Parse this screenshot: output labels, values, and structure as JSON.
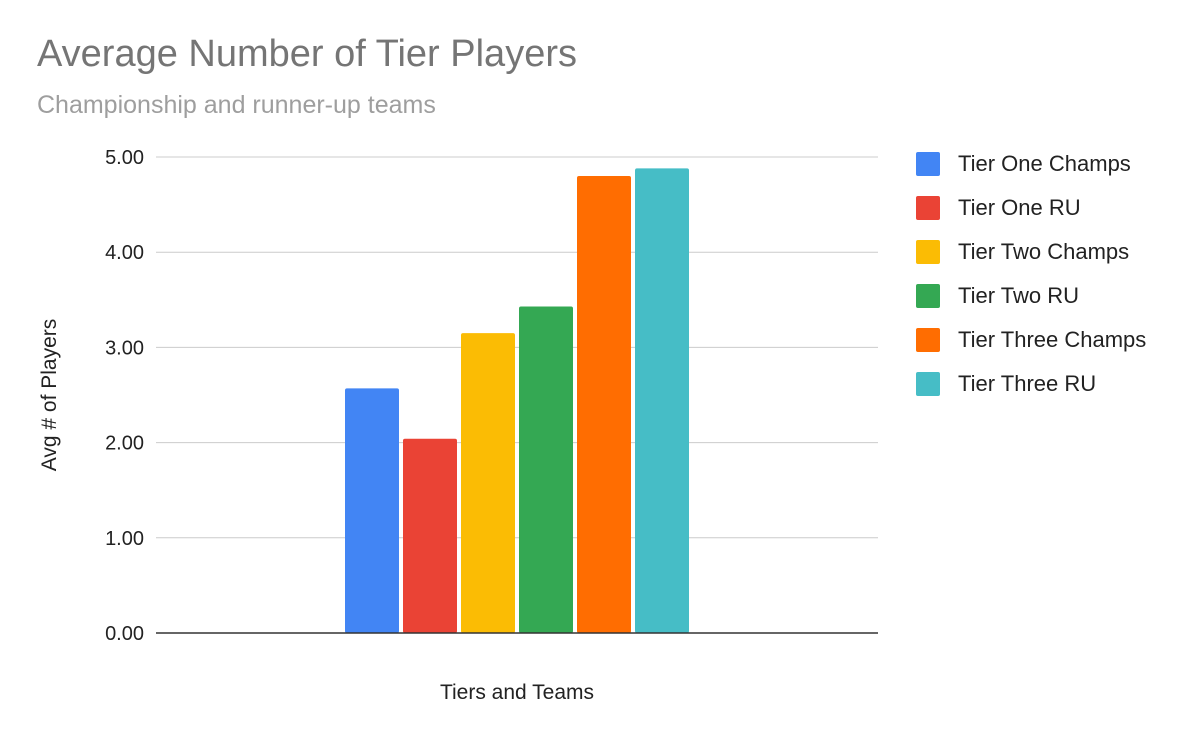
{
  "chart_data": {
    "type": "bar",
    "title": "Average Number of Tier Players",
    "subtitle": "Championship and runner-up teams",
    "xlabel": "Tiers and Teams",
    "ylabel": "Avg # of Players",
    "ylim": [
      0,
      5
    ],
    "yticks": [
      "0.00",
      "1.00",
      "2.00",
      "3.00",
      "4.00",
      "5.00"
    ],
    "grid": true,
    "legend_position": "right",
    "series": [
      {
        "name": "Tier One Champs",
        "value": 2.57,
        "color": "#4285f4"
      },
      {
        "name": "Tier One RU",
        "value": 2.04,
        "color": "#ea4335"
      },
      {
        "name": "Tier Two Champs",
        "value": 3.15,
        "color": "#fbbc04"
      },
      {
        "name": "Tier Two RU",
        "value": 3.43,
        "color": "#34a853"
      },
      {
        "name": "Tier Three Champs",
        "value": 4.8,
        "color": "#ff6d01"
      },
      {
        "name": "Tier Three RU",
        "value": 4.88,
        "color": "#46bdc6"
      }
    ]
  }
}
